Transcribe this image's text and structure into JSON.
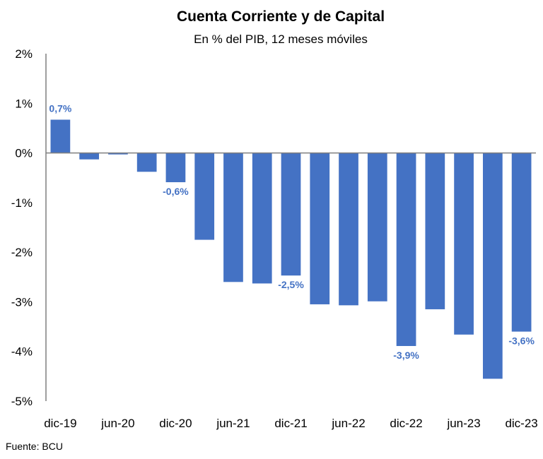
{
  "chart_data": {
    "type": "bar",
    "title": "Cuenta Corriente y de Capital",
    "subtitle": "En % del PIB, 12 meses móviles",
    "source": "Fuente: BCU",
    "ylim": [
      -5,
      2
    ],
    "yticks": [
      2,
      1,
      0,
      -1,
      -2,
      -3,
      -4,
      -5
    ],
    "ytick_labels": [
      "2%",
      "1%",
      "0%",
      "-1%",
      "-2%",
      "-3%",
      "-4%",
      "-5%"
    ],
    "x_tick_labels": [
      "dic-19",
      "jun-20",
      "dic-20",
      "jun-21",
      "dic-21",
      "jun-22",
      "dic-22",
      "jun-23",
      "dic-23"
    ],
    "values": [
      0.67,
      -0.13,
      -0.03,
      -0.38,
      -0.59,
      -1.75,
      -2.6,
      -2.63,
      -2.47,
      -3.05,
      -3.07,
      -2.99,
      -3.89,
      -3.15,
      -3.66,
      -4.55,
      -3.6
    ],
    "data_labels": [
      {
        "index": 0,
        "text": "0,7%"
      },
      {
        "index": 4,
        "text": "-0,6%"
      },
      {
        "index": 8,
        "text": "-2,5%"
      },
      {
        "index": 12,
        "text": "-3,9%"
      },
      {
        "index": 16,
        "text": "-3,6%"
      }
    ],
    "bar_color": "#4472c4",
    "grid": false
  }
}
